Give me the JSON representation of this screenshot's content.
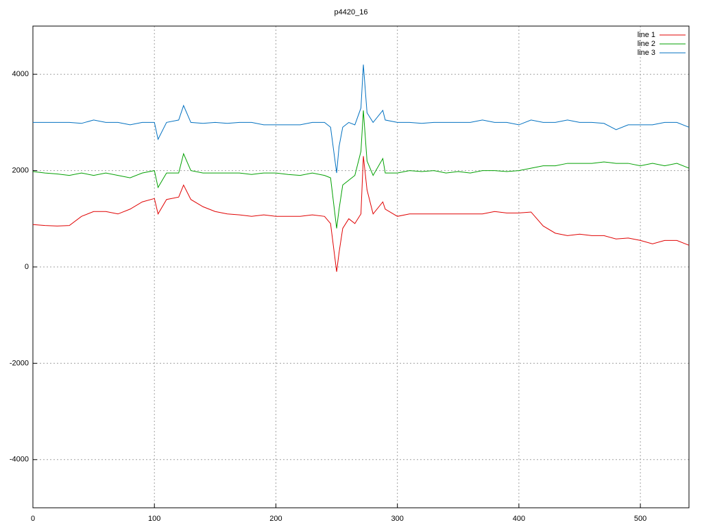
{
  "chart_data": {
    "type": "line",
    "title": "p4420_16",
    "x": [
      0,
      10,
      20,
      30,
      40,
      50,
      60,
      70,
      80,
      90,
      100,
      103,
      110,
      120,
      124,
      130,
      140,
      150,
      160,
      170,
      180,
      190,
      200,
      210,
      220,
      230,
      240,
      245,
      250,
      252,
      255,
      260,
      265,
      270,
      272,
      275,
      280,
      288,
      290,
      300,
      310,
      320,
      330,
      340,
      350,
      360,
      370,
      380,
      390,
      400,
      410,
      420,
      430,
      440,
      450,
      460,
      470,
      480,
      490,
      500,
      510,
      520,
      530,
      540
    ],
    "series": [
      {
        "name": "line 1",
        "color": "#e00000",
        "values": [
          880,
          860,
          850,
          860,
          1050,
          1150,
          1150,
          1100,
          1200,
          1350,
          1420,
          1100,
          1400,
          1450,
          1700,
          1400,
          1250,
          1150,
          1100,
          1080,
          1050,
          1080,
          1050,
          1050,
          1050,
          1080,
          1050,
          900,
          -100,
          300,
          800,
          1000,
          900,
          1100,
          2300,
          1600,
          1100,
          1350,
          1200,
          1050,
          1100,
          1100,
          1100,
          1100,
          1100,
          1100,
          1100,
          1150,
          1120,
          1120,
          1140,
          850,
          700,
          650,
          680,
          650,
          650,
          580,
          600,
          550,
          480,
          550,
          550,
          450
        ]
      },
      {
        "name": "line 2",
        "color": "#00a000",
        "values": [
          1980,
          1950,
          1930,
          1900,
          1950,
          1900,
          1950,
          1900,
          1850,
          1950,
          2000,
          1650,
          1950,
          1950,
          2350,
          2000,
          1950,
          1950,
          1950,
          1950,
          1920,
          1950,
          1950,
          1920,
          1900,
          1950,
          1900,
          1850,
          800,
          1200,
          1700,
          1800,
          1900,
          2400,
          3250,
          2200,
          1900,
          2250,
          1950,
          1950,
          2000,
          1980,
          2000,
          1950,
          1980,
          1950,
          2000,
          2000,
          1980,
          2000,
          2050,
          2100,
          2100,
          2150,
          2150,
          2150,
          2180,
          2150,
          2150,
          2100,
          2150,
          2100,
          2150,
          2050
        ]
      },
      {
        "name": "line 3",
        "color": "#0070c0",
        "values": [
          3000,
          3000,
          3000,
          3000,
          2980,
          3050,
          3000,
          3000,
          2950,
          3000,
          3000,
          2650,
          3000,
          3050,
          3350,
          3000,
          2980,
          3000,
          2980,
          3000,
          3000,
          2950,
          2950,
          2950,
          2950,
          3000,
          3000,
          2900,
          1950,
          2500,
          2900,
          3000,
          2950,
          3300,
          4200,
          3200,
          3000,
          3250,
          3050,
          3000,
          3000,
          2980,
          3000,
          3000,
          3000,
          3000,
          3050,
          3000,
          3000,
          2950,
          3050,
          3000,
          3000,
          3050,
          3000,
          3000,
          2980,
          2850,
          2950,
          2950,
          2950,
          3000,
          3000,
          2900
        ]
      }
    ],
    "xlim": [
      0,
      540
    ],
    "ylim": [
      -5000,
      5000
    ],
    "xticks": [
      0,
      100,
      200,
      300,
      400,
      500
    ],
    "yticks": [
      -4000,
      -2000,
      0,
      2000,
      4000
    ],
    "grid": true
  }
}
